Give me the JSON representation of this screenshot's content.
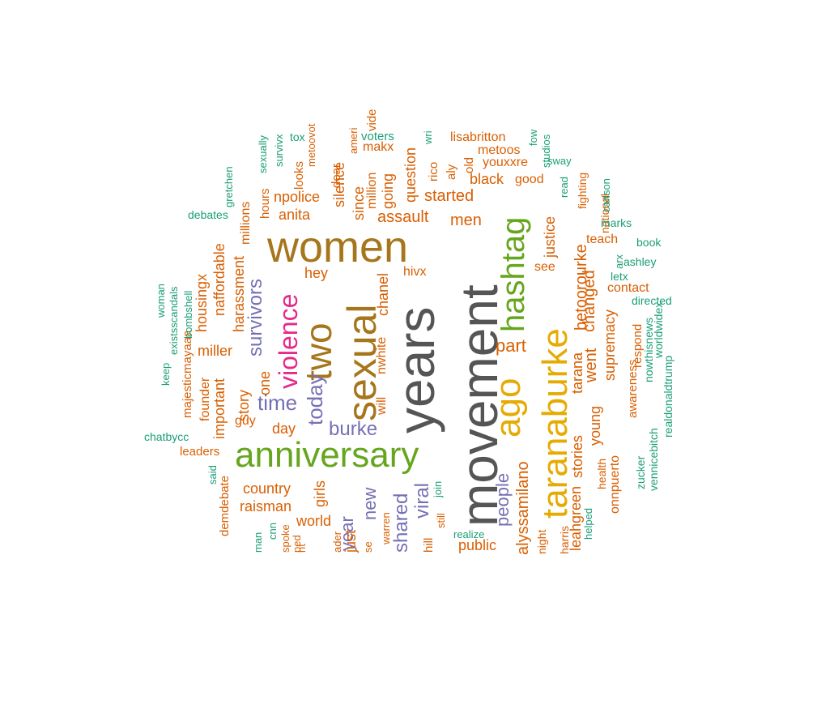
{
  "palette": {
    "teal": "#1b9e77",
    "orange": "#d95f02",
    "purple": "#7570b3",
    "magenta": "#e7298a",
    "green": "#66a61e",
    "gold": "#e6ab02",
    "brown": "#a6761d",
    "gray": "#555555"
  },
  "words": [
    {
      "text": "movement",
      "color": "gray"
    },
    {
      "text": "years",
      "color": "gray"
    },
    {
      "text": "women",
      "color": "brown"
    },
    {
      "text": "sexual",
      "color": "brown"
    },
    {
      "text": "two",
      "color": "brown"
    },
    {
      "text": "anniversary",
      "color": "green"
    },
    {
      "text": "taranaburke",
      "color": "gold"
    },
    {
      "text": "ago",
      "color": "gold"
    },
    {
      "text": "hashtag",
      "color": "green"
    },
    {
      "text": "violence",
      "color": "magenta"
    },
    {
      "text": "time",
      "color": "purple"
    },
    {
      "text": "today",
      "color": "purple"
    },
    {
      "text": "burke",
      "color": "purple"
    },
    {
      "text": "survivors",
      "color": "purple"
    },
    {
      "text": "shared",
      "color": "purple"
    },
    {
      "text": "viral",
      "color": "purple"
    },
    {
      "text": "new",
      "color": "purple"
    },
    {
      "text": "year",
      "color": "purple"
    },
    {
      "text": "people",
      "color": "purple"
    },
    {
      "text": "assault",
      "color": "orange"
    },
    {
      "text": "started",
      "color": "orange"
    },
    {
      "text": "men",
      "color": "orange"
    },
    {
      "text": "black",
      "color": "orange"
    },
    {
      "text": "part",
      "color": "orange"
    },
    {
      "text": "went",
      "color": "orange"
    },
    {
      "text": "changed",
      "color": "orange"
    },
    {
      "text": "betoorourke",
      "color": "orange"
    },
    {
      "text": "justice",
      "color": "orange"
    },
    {
      "text": "tarana",
      "color": "orange"
    },
    {
      "text": "stories",
      "color": "orange"
    },
    {
      "text": "leahgreen",
      "color": "orange"
    },
    {
      "text": "alyssamilano",
      "color": "orange"
    },
    {
      "text": "young",
      "color": "orange"
    },
    {
      "text": "supremacy",
      "color": "orange"
    },
    {
      "text": "country",
      "color": "orange"
    },
    {
      "text": "raisman",
      "color": "orange"
    },
    {
      "text": "world",
      "color": "orange"
    },
    {
      "text": "girls",
      "color": "orange"
    },
    {
      "text": "just",
      "color": "orange"
    },
    {
      "text": "public",
      "color": "orange"
    },
    {
      "text": "anita",
      "color": "orange"
    },
    {
      "text": "npolice",
      "color": "orange"
    },
    {
      "text": "question",
      "color": "orange"
    },
    {
      "text": "going",
      "color": "orange"
    },
    {
      "text": "since",
      "color": "orange"
    },
    {
      "text": "silence",
      "color": "orange"
    },
    {
      "text": "million",
      "color": "orange"
    },
    {
      "text": "harassment",
      "color": "orange"
    },
    {
      "text": "millions",
      "color": "orange"
    },
    {
      "text": "naffordable",
      "color": "orange"
    },
    {
      "text": "housingx",
      "color": "orange"
    },
    {
      "text": "miller",
      "color": "orange"
    },
    {
      "text": "story",
      "color": "orange"
    },
    {
      "text": "important",
      "color": "orange"
    },
    {
      "text": "founder",
      "color": "orange"
    },
    {
      "text": "day",
      "color": "orange"
    },
    {
      "text": "guy",
      "color": "orange"
    },
    {
      "text": "one",
      "color": "orange"
    },
    {
      "text": "hey",
      "color": "orange"
    },
    {
      "text": "chanel",
      "color": "orange"
    },
    {
      "text": "nwhite",
      "color": "orange"
    },
    {
      "text": "will",
      "color": "orange"
    },
    {
      "text": "hivx",
      "color": "orange"
    },
    {
      "text": "lisabritton",
      "color": "orange"
    },
    {
      "text": "metoos",
      "color": "orange"
    },
    {
      "text": "youxxre",
      "color": "orange"
    },
    {
      "text": "good",
      "color": "orange"
    },
    {
      "text": "makx",
      "color": "orange"
    },
    {
      "text": "see",
      "color": "orange"
    },
    {
      "text": "teach",
      "color": "orange"
    },
    {
      "text": "contact",
      "color": "orange"
    },
    {
      "text": "respond",
      "color": "orange"
    },
    {
      "text": "awareness",
      "color": "orange"
    },
    {
      "text": "onnpuerto",
      "color": "orange"
    },
    {
      "text": "health",
      "color": "orange"
    },
    {
      "text": "harris",
      "color": "orange"
    },
    {
      "text": "night",
      "color": "orange"
    },
    {
      "text": "hours",
      "color": "orange"
    },
    {
      "text": "looks",
      "color": "orange"
    },
    {
      "text": "dear",
      "color": "orange"
    },
    {
      "text": "rico",
      "color": "orange"
    },
    {
      "text": "aly",
      "color": "orange"
    },
    {
      "text": "old",
      "color": "orange"
    },
    {
      "text": "national",
      "color": "orange"
    },
    {
      "text": "fighting",
      "color": "orange"
    },
    {
      "text": "leaders",
      "color": "orange"
    },
    {
      "text": "demdebate",
      "color": "orange"
    },
    {
      "text": "majesticmayaaa",
      "color": "orange"
    },
    {
      "text": "metoovot",
      "color": "orange"
    },
    {
      "text": "hill",
      "color": "orange"
    },
    {
      "text": "warren",
      "color": "orange"
    },
    {
      "text": "ameri",
      "color": "orange"
    },
    {
      "text": "spoke",
      "color": "orange"
    },
    {
      "text": "ped",
      "color": "orange"
    },
    {
      "text": "ader",
      "color": "orange"
    },
    {
      "text": "se",
      "color": "orange"
    },
    {
      "text": "nt",
      "color": "orange"
    },
    {
      "text": "still",
      "color": "orange"
    },
    {
      "text": "vide",
      "color": "orange"
    },
    {
      "text": "voters",
      "color": "teal"
    },
    {
      "text": "tox",
      "color": "teal"
    },
    {
      "text": "wri",
      "color": "teal"
    },
    {
      "text": "fow",
      "color": "teal"
    },
    {
      "text": "studios",
      "color": "teal"
    },
    {
      "text": "sway",
      "color": "teal"
    },
    {
      "text": "read",
      "color": "teal"
    },
    {
      "text": "carlson",
      "color": "teal"
    },
    {
      "text": "marks",
      "color": "teal"
    },
    {
      "text": "book",
      "color": "teal"
    },
    {
      "text": "arx",
      "color": "teal"
    },
    {
      "text": "ashley",
      "color": "teal"
    },
    {
      "text": "letx",
      "color": "teal"
    },
    {
      "text": "directed",
      "color": "teal"
    },
    {
      "text": "nowthisnews",
      "color": "teal"
    },
    {
      "text": "worldwidex",
      "color": "teal"
    },
    {
      "text": "realdonaldtrump",
      "color": "teal"
    },
    {
      "text": "zucker",
      "color": "teal"
    },
    {
      "text": "vennicebitch",
      "color": "teal"
    },
    {
      "text": "helped",
      "color": "teal"
    },
    {
      "text": "realize",
      "color": "teal"
    },
    {
      "text": "join",
      "color": "teal"
    },
    {
      "text": "cnn",
      "color": "teal"
    },
    {
      "text": "man",
      "color": "teal"
    },
    {
      "text": "said",
      "color": "teal"
    },
    {
      "text": "chatbycc",
      "color": "teal"
    },
    {
      "text": "keep",
      "color": "teal"
    },
    {
      "text": "woman",
      "color": "teal"
    },
    {
      "text": "existsscandals",
      "color": "teal"
    },
    {
      "text": "bombshell",
      "color": "teal"
    },
    {
      "text": "debates",
      "color": "teal"
    },
    {
      "text": "gretchen",
      "color": "teal"
    },
    {
      "text": "sexually",
      "color": "teal"
    },
    {
      "text": "survivx",
      "color": "teal"
    }
  ]
}
